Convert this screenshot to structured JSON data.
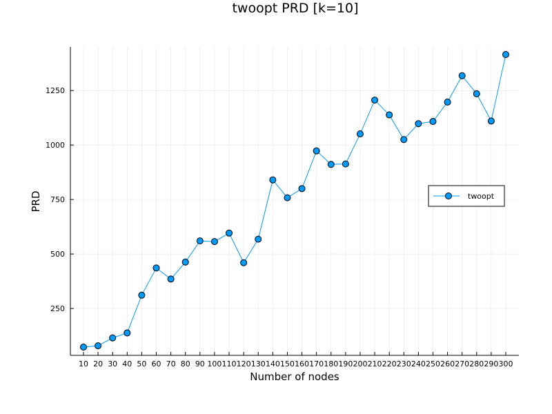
{
  "chart_data": {
    "type": "line",
    "title": "twoopt PRD [k=10]",
    "xlabel": "Number of nodes",
    "ylabel": "PRD",
    "x": [
      10,
      20,
      30,
      40,
      50,
      60,
      70,
      80,
      90,
      100,
      110,
      120,
      130,
      140,
      150,
      160,
      170,
      180,
      190,
      200,
      210,
      220,
      230,
      240,
      250,
      260,
      270,
      280,
      290,
      300
    ],
    "x_tick_labels": [
      "10",
      "20",
      "30",
      "40",
      "50",
      "60",
      "70",
      "80",
      "90",
      "100",
      "110",
      "120",
      "130",
      "140",
      "150",
      "160",
      "170",
      "180",
      "190",
      "200",
      "210",
      "220",
      "230",
      "240",
      "250",
      "260",
      "270",
      "280",
      "290",
      "300"
    ],
    "y_ticks": [
      250,
      500,
      750,
      1000,
      1250
    ],
    "y_tick_labels": [
      "250",
      "500",
      "750",
      "1000",
      "1250"
    ],
    "ylim": [
      35,
      1450
    ],
    "xlim": [
      1,
      309
    ],
    "grid": true,
    "legend_position": "right",
    "series": [
      {
        "name": "twoopt",
        "color": "#009AF9",
        "marker": "circle",
        "values": [
          73,
          79,
          115,
          138,
          311,
          436,
          385,
          463,
          560,
          557,
          596,
          460,
          568,
          840,
          758,
          800,
          973,
          911,
          913,
          1051,
          1206,
          1138,
          1025,
          1098,
          1108,
          1197,
          1318,
          1235,
          1110,
          1415
        ]
      }
    ]
  }
}
